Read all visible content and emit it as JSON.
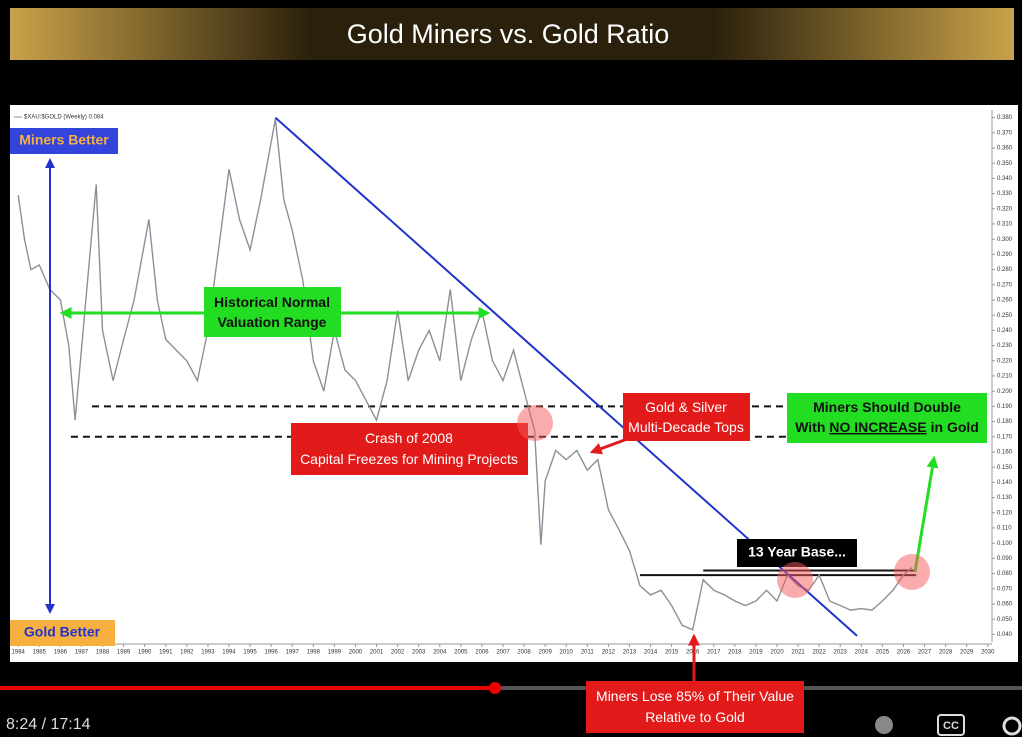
{
  "title": "Gold Miners vs. Gold Ratio",
  "video": {
    "time": "8:24 / 17:14",
    "cc": "CC"
  },
  "annotations": {
    "miners_better": "Miners Better",
    "gold_better": "Gold Better",
    "historical": [
      "Historical Normal",
      "Valuation Range"
    ],
    "crash": [
      "Crash of 2008",
      "Capital Freezes for Mining Projects"
    ],
    "tops": [
      "Gold & Silver",
      "Multi-Decade Tops"
    ],
    "double": {
      "line1": "Miners Should Double",
      "line2": [
        "With",
        "NO INCREASE",
        "in Gold"
      ]
    },
    "base": "13 Year Base...",
    "lose": [
      "Miners Lose 85% of Their Value",
      "Relative to Gold"
    ]
  },
  "chart_data": {
    "type": "line",
    "legend": "$XAU:$GOLD (Weekly) 0.084",
    "xlim": [
      1983.8,
      2030.2
    ],
    "ylim": [
      0.035,
      0.385
    ],
    "xticks": [
      1984,
      1985,
      1986,
      1987,
      1988,
      1989,
      1990,
      1991,
      1992,
      1993,
      1994,
      1995,
      1996,
      1997,
      1998,
      1999,
      2000,
      2001,
      2002,
      2003,
      2004,
      2005,
      2006,
      2007,
      2008,
      2009,
      2010,
      2011,
      2012,
      2013,
      2014,
      2015,
      2016,
      2017,
      2018,
      2019,
      2020,
      2021,
      2022,
      2023,
      2024,
      2025,
      2026,
      2027,
      2028,
      2029,
      2030
    ],
    "yticks": [
      {
        "value": 0.38,
        "label": "0.380"
      },
      {
        "value": 0.37,
        "label": "0.370"
      },
      {
        "value": 0.36,
        "label": "0.360"
      },
      {
        "value": 0.35,
        "label": "0.350"
      },
      {
        "value": 0.34,
        "label": "0.340"
      },
      {
        "value": 0.33,
        "label": "0.330"
      },
      {
        "value": 0.32,
        "label": "0.320"
      },
      {
        "value": 0.31,
        "label": "0.310"
      },
      {
        "value": 0.3,
        "label": "0.300"
      },
      {
        "value": 0.29,
        "label": "0.290"
      },
      {
        "value": 0.28,
        "label": "0.280"
      },
      {
        "value": 0.27,
        "label": "0.270"
      },
      {
        "value": 0.26,
        "label": "0.260"
      },
      {
        "value": 0.25,
        "label": "0.250"
      },
      {
        "value": 0.24,
        "label": "0.240"
      },
      {
        "value": 0.23,
        "label": "0.230"
      },
      {
        "value": 0.22,
        "label": "0.220"
      },
      {
        "value": 0.21,
        "label": "0.210"
      },
      {
        "value": 0.2,
        "label": "0.200"
      },
      {
        "value": 0.19,
        "label": "0.190"
      },
      {
        "value": 0.18,
        "label": "0.180"
      },
      {
        "value": 0.17,
        "label": "0.170"
      },
      {
        "value": 0.16,
        "label": "0.160"
      },
      {
        "value": 0.15,
        "label": "0.150"
      },
      {
        "value": 0.14,
        "label": "0.140"
      },
      {
        "value": 0.13,
        "label": "0.130"
      },
      {
        "value": 0.12,
        "label": "0.120"
      },
      {
        "value": 0.11,
        "label": "0.110"
      },
      {
        "value": 0.1,
        "label": "0.100"
      },
      {
        "value": 0.09,
        "label": "0.090"
      },
      {
        "value": 0.08,
        "label": "0.080"
      },
      {
        "value": 0.07,
        "label": "0.070"
      },
      {
        "value": 0.06,
        "label": "0.060"
      },
      {
        "value": 0.05,
        "label": "0.050"
      },
      {
        "value": 0.04,
        "label": "0.040"
      }
    ],
    "series": [
      {
        "name": "$XAU:$GOLD",
        "color": "#8a9099",
        "x": [
          1984.0,
          1984.3,
          1984.6,
          1985.0,
          1985.5,
          1986.0,
          1986.4,
          1986.7,
          1987.0,
          1987.4,
          1987.7,
          1988.0,
          1988.5,
          1989.0,
          1989.5,
          1990.2,
          1990.6,
          1991.0,
          1991.5,
          1992.0,
          1992.5,
          1993.0,
          1993.5,
          1994.0,
          1994.5,
          1995.0,
          1995.5,
          1996.2,
          1996.6,
          1997.0,
          1997.5,
          1998.0,
          1998.5,
          1999.0,
          1999.5,
          2000.0,
          2000.5,
          2001.0,
          2001.5,
          2002.0,
          2002.5,
          2003.0,
          2003.5,
          2004.0,
          2004.5,
          2005.0,
          2005.5,
          2006.0,
          2006.5,
          2007.0,
          2007.5,
          2008.0,
          2008.5,
          2008.8,
          2009.0,
          2009.5,
          2010.0,
          2010.5,
          2011.0,
          2011.5,
          2012.0,
          2012.5,
          2013.0,
          2013.5,
          2014.0,
          2014.5,
          2015.0,
          2015.5,
          2016.0,
          2016.5,
          2017.0,
          2017.5,
          2018.0,
          2018.5,
          2019.0,
          2019.5,
          2020.0,
          2020.5,
          2021.0,
          2021.5,
          2022.0,
          2022.5,
          2023.0,
          2023.5,
          2024.0,
          2024.5,
          2025.0,
          2025.5,
          2026.0,
          2026.4
        ],
        "values": [
          0.329,
          0.3,
          0.28,
          0.283,
          0.267,
          0.26,
          0.23,
          0.181,
          0.227,
          0.29,
          0.336,
          0.24,
          0.207,
          0.234,
          0.26,
          0.313,
          0.26,
          0.234,
          0.227,
          0.22,
          0.207,
          0.24,
          0.293,
          0.346,
          0.313,
          0.293,
          0.326,
          0.379,
          0.326,
          0.306,
          0.273,
          0.22,
          0.2,
          0.24,
          0.214,
          0.207,
          0.194,
          0.181,
          0.207,
          0.253,
          0.207,
          0.227,
          0.24,
          0.22,
          0.267,
          0.207,
          0.234,
          0.253,
          0.22,
          0.207,
          0.227,
          0.2,
          0.174,
          0.099,
          0.141,
          0.161,
          0.155,
          0.161,
          0.148,
          0.155,
          0.122,
          0.109,
          0.095,
          0.072,
          0.066,
          0.069,
          0.059,
          0.046,
          0.043,
          0.076,
          0.069,
          0.066,
          0.062,
          0.059,
          0.062,
          0.069,
          0.062,
          0.079,
          0.072,
          0.069,
          0.079,
          0.062,
          0.059,
          0.056,
          0.057,
          0.056,
          0.062,
          0.069,
          0.079,
          0.084
        ]
      }
    ],
    "trendline": {
      "color": "#2233cc",
      "x": [
        1996.2,
        2023.8
      ],
      "y": [
        0.38,
        0.039
      ]
    },
    "levels": [
      {
        "y": 0.19,
        "x": [
          1987.5,
          2027.8
        ],
        "style": "dashed"
      },
      {
        "y": 0.17,
        "x": [
          1986.5,
          2027.8
        ],
        "style": "dashed"
      },
      {
        "y": 0.082,
        "x": [
          2016.5,
          2026.6
        ],
        "style": "solid"
      },
      {
        "y": 0.079,
        "x": [
          2013.5,
          2026.6
        ],
        "style": "solid"
      }
    ]
  }
}
